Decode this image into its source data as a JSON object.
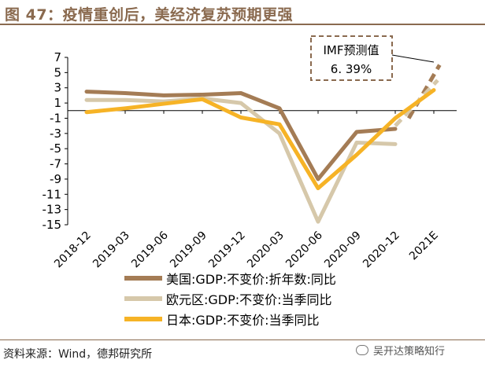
{
  "header": {
    "title": "图 47：疫情重创后，美经济复苏预期更强"
  },
  "footer": {
    "source": "资料来源：Wind，德邦研究所",
    "watermark": "吴开达策略知行"
  },
  "colors": {
    "brand": "#8a6a4f",
    "us": "#a47c55",
    "eu": "#d6c8aa",
    "jp": "#f6b326",
    "annotation_box": "#8a6a4f"
  },
  "annotation": {
    "line1": "IMF预测值",
    "line2": "6. 39%"
  },
  "chart_data": {
    "type": "line",
    "categories": [
      "2018-12",
      "2019-03",
      "2019-06",
      "2019-09",
      "2019-12",
      "2020-03",
      "2020-06",
      "2020-09",
      "2020-12",
      "2021E"
    ],
    "ylim": [
      -15,
      7
    ],
    "yticks": [
      7,
      5,
      3,
      1,
      -1,
      -3,
      -5,
      -7,
      -9,
      -11,
      -13,
      -15
    ],
    "ytick_labels": [
      "7",
      "5",
      "3",
      "1",
      "-1",
      "-3",
      "-5",
      "-7",
      "-9",
      "-11",
      "-13",
      "-15"
    ],
    "legend_position": "bottom",
    "series": [
      {
        "name": "美国:GDP:不变价:折年数:同比",
        "key": "us",
        "x": [
          0,
          1,
          2,
          3,
          4,
          5,
          6,
          7,
          8
        ],
        "values": [
          2.5,
          2.3,
          2.0,
          2.1,
          2.3,
          0.3,
          -9.0,
          -2.8,
          -2.4
        ],
        "forecast": {
          "x": [
            8.35,
            9.15
          ],
          "values": [
            -1.0,
            6.0
          ]
        }
      },
      {
        "name": "欧元区:GDP:不变价:当季同比",
        "key": "eu",
        "x": [
          0,
          1,
          2,
          3,
          4,
          5,
          6,
          7,
          8
        ],
        "values": [
          1.4,
          1.4,
          1.2,
          1.6,
          1.0,
          -3.0,
          -14.6,
          -4.2,
          -4.4
        ],
        "forecast": {
          "x": [
            8.0,
            9.1
          ],
          "values": [
            -2.0,
            4.0
          ]
        }
      },
      {
        "name": "日本:GDP:不变价:当季同比",
        "key": "jp",
        "x": [
          0,
          1,
          2,
          3,
          4,
          5,
          6,
          7,
          8,
          9
        ],
        "values": [
          -0.2,
          0.3,
          0.9,
          1.5,
          -0.9,
          -1.8,
          -10.2,
          -5.8,
          -1.0,
          2.7
        ],
        "forecast": null
      }
    ]
  }
}
